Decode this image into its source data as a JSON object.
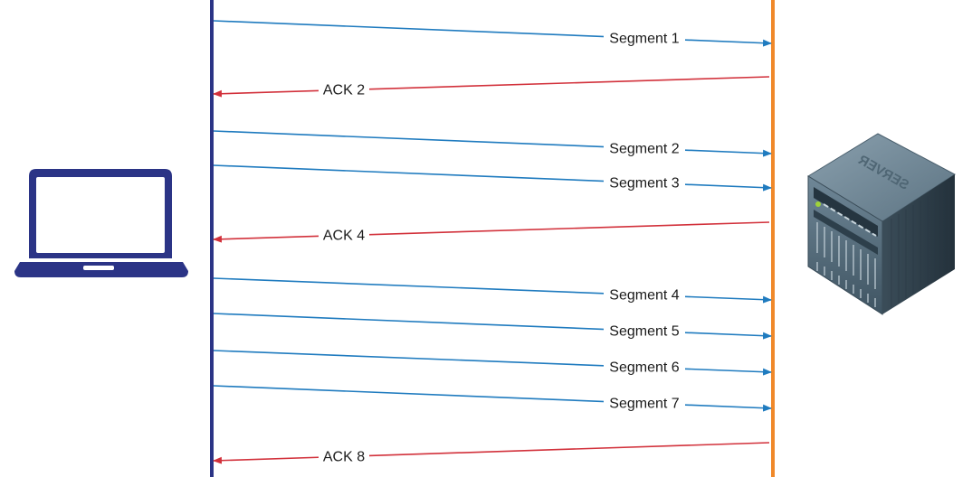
{
  "colors": {
    "client_line": "#2b3486",
    "server_line": "#f0892a",
    "segment": "#1f7bbf",
    "ack": "#d2313b",
    "laptop": "#2b3486"
  },
  "client": {
    "icon": "laptop-icon"
  },
  "server": {
    "icon": "server-rack-icon",
    "label": "SERVER"
  },
  "messages": [
    {
      "kind": "segment",
      "label": "Segment 1"
    },
    {
      "kind": "ack",
      "label": "ACK 2"
    },
    {
      "kind": "segment",
      "label": "Segment 2"
    },
    {
      "kind": "segment",
      "label": "Segment 3"
    },
    {
      "kind": "ack",
      "label": "ACK 4"
    },
    {
      "kind": "segment",
      "label": "Segment 4"
    },
    {
      "kind": "segment",
      "label": "Segment 5"
    },
    {
      "kind": "segment",
      "label": "Segment 6"
    },
    {
      "kind": "segment",
      "label": "Segment 7"
    },
    {
      "kind": "ack",
      "label": "ACK 8"
    }
  ]
}
